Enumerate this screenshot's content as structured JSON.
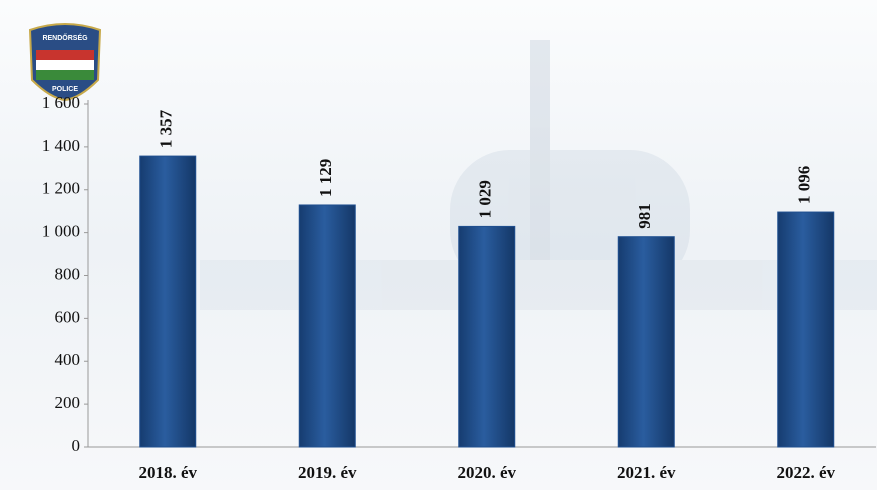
{
  "logo": {
    "top": "RENDŐRSÉG",
    "bottom": "POLICE"
  },
  "chart_data": {
    "type": "bar",
    "categories": [
      "2018. év",
      "2019. év",
      "2020. év",
      "2021. év",
      "2022. év"
    ],
    "values": [
      1357,
      1129,
      1029,
      981,
      1096
    ],
    "value_labels": [
      "1 357",
      "1 129",
      "1 029",
      "981",
      "1 096"
    ],
    "color": "#1f4f8f",
    "ylim": [
      0,
      1600
    ],
    "yticks": [
      0,
      200,
      400,
      600,
      800,
      {
        "value": 1000,
        "label": "1 000"
      },
      {
        "value": 1200,
        "label": "1 200"
      },
      {
        "value": 1400,
        "label": "1 400"
      },
      {
        "value": 1600,
        "label": "1 600"
      }
    ]
  }
}
